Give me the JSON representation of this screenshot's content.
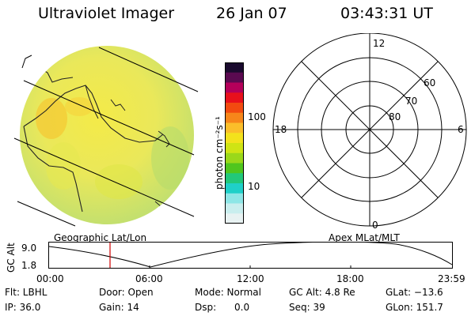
{
  "header": {
    "title": "Ultraviolet Imager",
    "date": "26 Jan 07",
    "time": "03:43:31 UT"
  },
  "colorbar": {
    "unit_label": "photon cm⁻²s⁻¹",
    "ticks": [
      "100",
      "10"
    ],
    "colors": [
      "#1a0a2e",
      "#5a0a50",
      "#b4005a",
      "#e8101c",
      "#f24a10",
      "#f7861a",
      "#fbbe2a",
      "#f3e21c",
      "#cfe414",
      "#9ad81a",
      "#4fc61e",
      "#22c87a",
      "#1fd0c8",
      "#8de6e6",
      "#c9eeee",
      "#e8f2f2"
    ]
  },
  "polar": {
    "labels": [
      "12",
      "18",
      "6",
      "0",
      "60",
      "70",
      "80"
    ]
  },
  "timeline": {
    "left_title": "Geographic Lat/Lon",
    "right_title": "Apex MLat/MLT",
    "y_axis_label": "GC Alt",
    "y_ticks": [
      "9.0",
      "1.8"
    ],
    "x_ticks": [
      "00:00",
      "06:00",
      "12:00",
      "18:00",
      "23:59"
    ],
    "marker_color": "#d00000"
  },
  "info": {
    "flt": "Flt: LBHL",
    "ip": "IP: 36.0",
    "door": "Door: Open",
    "gain": "Gain: 14",
    "mode": "Mode: Normal",
    "dsp": "Dsp:      0.0",
    "gcalt": "GC Alt: 4.8 Re",
    "seq": "Seq: 39",
    "glat": "GLat: −13.6",
    "glon": "GLon: 151.7"
  }
}
